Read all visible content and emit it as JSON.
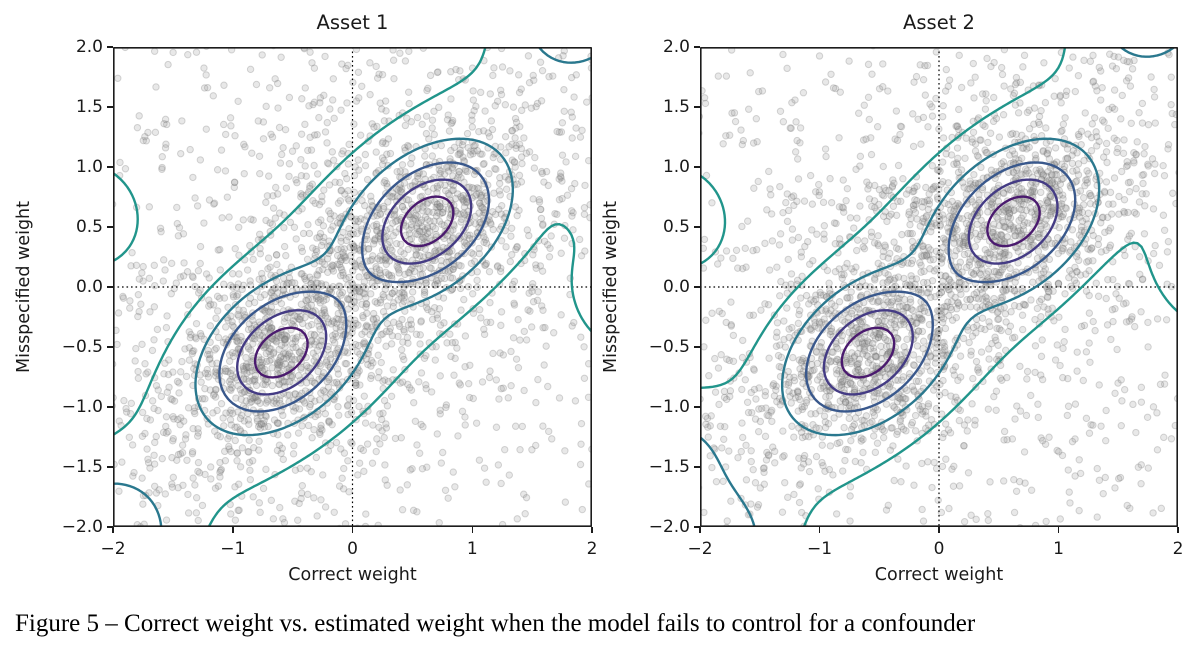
{
  "figure": {
    "caption": "Figure 5 – Correct weight vs. estimated weight when the model fails to control for a confounder"
  },
  "colors": {
    "spine": "#1c1c1c",
    "text": "#1a1a1a",
    "refline": "#000000",
    "scatter_fill": "rgba(150,150,150,0.22)",
    "scatter_edge": "rgba(110,110,110,0.28)",
    "contour_palette_outer_to_inner": [
      "#21958b",
      "#2a788e",
      "#39588c",
      "#443b84",
      "#4a1a6e"
    ]
  },
  "chart_data": [
    {
      "type": "scatter",
      "title": "Asset 1",
      "xlabel": "Correct weight",
      "ylabel": "Misspecified weight",
      "xlim": [
        -2,
        2
      ],
      "ylim": [
        -2,
        2
      ],
      "grid": false,
      "xticks": [
        {
          "v": -2,
          "label": "−2"
        },
        {
          "v": -1,
          "label": "−1"
        },
        {
          "v": 0,
          "label": "0"
        },
        {
          "v": 1,
          "label": "1"
        },
        {
          "v": 2,
          "label": "2"
        }
      ],
      "yticks": [
        {
          "v": 2.0,
          "label": "2.0"
        },
        {
          "v": 1.5,
          "label": "1.5"
        },
        {
          "v": 1.0,
          "label": "1.0"
        },
        {
          "v": 0.5,
          "label": "0.5"
        },
        {
          "v": 0.0,
          "label": "0.0"
        },
        {
          "v": -0.5,
          "label": "−0.5"
        },
        {
          "v": -1.0,
          "label": "−1.0"
        },
        {
          "v": -1.5,
          "label": "−1.5"
        },
        {
          "v": -2.0,
          "label": "−2.0"
        }
      ],
      "reference_lines": {
        "x": 0.0,
        "y": 0.0,
        "style": "dotted"
      },
      "scatter": {
        "n_points": 2900,
        "seed": 7,
        "point_radius": 3.2,
        "components": [
          {
            "mean": [
              0.63,
              0.55
            ],
            "sd": [
              0.52,
              0.36
            ],
            "angle_deg": 40,
            "weight": 0.25
          },
          {
            "mean": [
              -0.6,
              -0.55
            ],
            "sd": [
              0.52,
              0.36
            ],
            "angle_deg": 40,
            "weight": 0.25
          },
          {
            "mean": [
              0.0,
              0.0
            ],
            "sd": [
              1.5,
              0.85
            ],
            "angle_deg": 45,
            "weight": 0.31
          },
          {
            "uniform": true,
            "range": [
              -2.1,
              2.1
            ],
            "weight": 0.19
          }
        ]
      },
      "density_contours": {
        "levels_rel": [
          0.13,
          0.27,
          0.46,
          0.66,
          0.86
        ],
        "line_width": 2.4,
        "components": [
          {
            "mean": [
              0.63,
              0.55
            ],
            "sd": [
              0.4,
              0.28
            ],
            "angle_deg": 40,
            "weight": 0.145
          },
          {
            "mean": [
              -0.6,
              -0.55
            ],
            "sd": [
              0.4,
              0.28
            ],
            "angle_deg": 40,
            "weight": 0.145
          },
          {
            "mean": [
              0.0,
              0.0
            ],
            "sd": [
              2.6,
              0.78
            ],
            "angle_deg": 45,
            "weight": 0.7
          }
        ],
        "edge_bumps": [
          {
            "mean": [
              -2.25,
              0.62
            ],
            "sd": [
              0.4,
              0.4
            ],
            "angle_deg": 0,
            "weight": 0.055
          },
          {
            "mean": [
              -2.05,
              -2.1
            ],
            "sd": [
              0.35,
              0.35
            ],
            "angle_deg": 0,
            "weight": 0.07
          },
          {
            "mean": [
              1.85,
              2.3
            ],
            "sd": [
              0.35,
              0.35
            ],
            "angle_deg": 0,
            "weight": 0.06
          },
          {
            "mean": [
              2.4,
              -0.1
            ],
            "sd": [
              0.4,
              0.4
            ],
            "angle_deg": 0,
            "weight": 0.06
          },
          {
            "mean": [
              2.35,
              0.9
            ],
            "sd": [
              0.3,
              0.3
            ],
            "angle_deg": 0,
            "weight": 0.035
          }
        ]
      }
    },
    {
      "type": "scatter",
      "title": "Asset 2",
      "xlabel": "Correct weight",
      "ylabel": "Misspecified weight",
      "xlim": [
        -2,
        2
      ],
      "ylim": [
        -2,
        2
      ],
      "grid": false,
      "xticks": [
        {
          "v": -2,
          "label": "−2"
        },
        {
          "v": -1,
          "label": "−1"
        },
        {
          "v": 0,
          "label": "0"
        },
        {
          "v": 1,
          "label": "1"
        },
        {
          "v": 2,
          "label": "2"
        }
      ],
      "yticks": [
        {
          "v": 2.0,
          "label": "2.0"
        },
        {
          "v": 1.5,
          "label": "1.5"
        },
        {
          "v": 1.0,
          "label": "1.0"
        },
        {
          "v": 0.5,
          "label": "0.5"
        },
        {
          "v": 0.0,
          "label": "0.0"
        },
        {
          "v": -0.5,
          "label": "−0.5"
        },
        {
          "v": -1.0,
          "label": "−1.0"
        },
        {
          "v": -1.5,
          "label": "−1.5"
        },
        {
          "v": -2.0,
          "label": "−2.0"
        }
      ],
      "reference_lines": {
        "x": 0.0,
        "y": 0.0,
        "style": "dotted"
      },
      "scatter": {
        "n_points": 2900,
        "seed": 13,
        "point_radius": 3.2,
        "components": [
          {
            "mean": [
              0.63,
              0.55
            ],
            "sd": [
              0.52,
              0.36
            ],
            "angle_deg": 40,
            "weight": 0.25
          },
          {
            "mean": [
              -0.6,
              -0.55
            ],
            "sd": [
              0.52,
              0.36
            ],
            "angle_deg": 40,
            "weight": 0.25
          },
          {
            "mean": [
              0.0,
              0.0
            ],
            "sd": [
              1.5,
              0.85
            ],
            "angle_deg": 45,
            "weight": 0.31
          },
          {
            "uniform": true,
            "range": [
              -2.1,
              2.1
            ],
            "weight": 0.19
          }
        ]
      },
      "density_contours": {
        "levels_rel": [
          0.13,
          0.27,
          0.46,
          0.66,
          0.86
        ],
        "line_width": 2.4,
        "components": [
          {
            "mean": [
              0.63,
              0.55
            ],
            "sd": [
              0.4,
              0.28
            ],
            "angle_deg": 40,
            "weight": 0.145
          },
          {
            "mean": [
              -0.6,
              -0.55
            ],
            "sd": [
              0.4,
              0.28
            ],
            "angle_deg": 40,
            "weight": 0.145
          },
          {
            "mean": [
              0.0,
              0.0
            ],
            "sd": [
              2.6,
              0.78
            ],
            "angle_deg": 45,
            "weight": 0.7
          }
        ],
        "edge_bumps": [
          {
            "mean": [
              -2.25,
              0.6
            ],
            "sd": [
              0.4,
              0.4
            ],
            "angle_deg": 0,
            "weight": 0.055
          },
          {
            "mean": [
              -2.3,
              -1.45
            ],
            "sd": [
              0.35,
              0.35
            ],
            "angle_deg": 0,
            "weight": 0.05
          },
          {
            "mean": [
              -1.9,
              -2.2
            ],
            "sd": [
              0.35,
              0.35
            ],
            "angle_deg": 0,
            "weight": 0.055
          },
          {
            "mean": [
              1.75,
              2.35
            ],
            "sd": [
              0.35,
              0.35
            ],
            "angle_deg": 0,
            "weight": 0.06
          },
          {
            "mean": [
              2.4,
              0.1
            ],
            "sd": [
              0.4,
              0.4
            ],
            "angle_deg": 0,
            "weight": 0.06
          },
          {
            "mean": [
              2.35,
              1.05
            ],
            "sd": [
              0.3,
              0.3
            ],
            "angle_deg": 0,
            "weight": 0.04
          }
        ]
      }
    }
  ]
}
